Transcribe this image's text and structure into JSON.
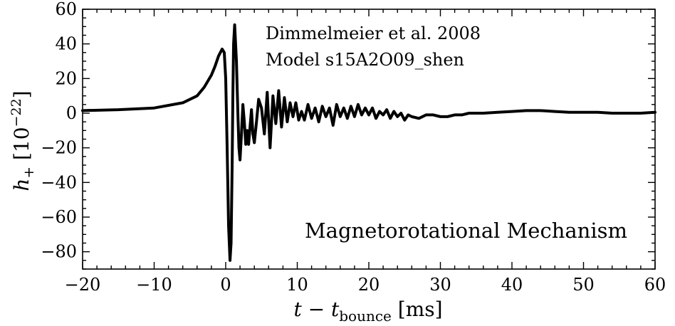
{
  "chart_data": {
    "type": "line",
    "xlabel": {
      "main": "t − t",
      "sub": "bounce",
      "unit": " [ms]"
    },
    "ylabel": {
      "main": "h",
      "sub": "+",
      "unit": " [10",
      "exp": "−22",
      "close": "]"
    },
    "xlim": [
      -20,
      60
    ],
    "ylim": [
      -90,
      60
    ],
    "xticks": [
      -20,
      -10,
      0,
      10,
      20,
      30,
      40,
      50,
      60
    ],
    "xtick_labels": [
      "−20",
      "−10",
      "0",
      "10",
      "20",
      "30",
      "40",
      "50",
      "60"
    ],
    "yticks": [
      -80,
      -60,
      -40,
      -20,
      0,
      20,
      40,
      60
    ],
    "ytick_labels": [
      "−80",
      "−60",
      "−40",
      "−20",
      "0",
      "20",
      "40",
      "60"
    ],
    "annotations": {
      "reference_line1": "Dimmelmeier et al. 2008",
      "reference_line2": "Model s15A2O09_shen",
      "mechanism": "Magnetorotational Mechanism"
    },
    "grid": false,
    "line_color": "#000000",
    "series": [
      {
        "x": [
          -20,
          -15,
          -10,
          -6,
          -4,
          -3,
          -2,
          -1.5,
          -1.0,
          -0.5,
          -0.2,
          0.0,
          0.2,
          0.4,
          0.6,
          0.75,
          0.9,
          1.0,
          1.1,
          1.25,
          1.5,
          1.7,
          1.85,
          2.0,
          2.2,
          2.4,
          2.6,
          2.8,
          3.0,
          3.2,
          3.4,
          3.6,
          3.8,
          4.0,
          4.3,
          4.6,
          5.0,
          5.4,
          5.8,
          6.2,
          6.6,
          7.0,
          7.4,
          7.8,
          8.2,
          8.6,
          9.0,
          9.4,
          9.8,
          10.2,
          10.6,
          11.0,
          11.5,
          12.0,
          12.5,
          13.0,
          13.5,
          14.0,
          14.5,
          15.0,
          15.5,
          16.0,
          16.5,
          17.0,
          17.5,
          18.0,
          18.5,
          19.0,
          19.5,
          20.0,
          20.5,
          21.0,
          21.5,
          22.0,
          22.5,
          23.0,
          23.5,
          24.0,
          24.5,
          25.0,
          25.5,
          26.0,
          27.0,
          28.0,
          29.0,
          30.0,
          31.0,
          32.0,
          33.0,
          34.0,
          36.0,
          38.0,
          40.0,
          42.0,
          44.0,
          46.0,
          48.0,
          50.0,
          52.0,
          54.0,
          56.0,
          58.0,
          60.0
        ],
        "y": [
          1.5,
          2,
          3,
          6,
          10,
          15,
          22,
          27,
          33,
          37,
          35,
          20,
          -20,
          -65,
          -85,
          -75,
          -30,
          10,
          40,
          51,
          30,
          0,
          -20,
          -27,
          -12,
          5,
          -5,
          -18,
          -10,
          -18,
          -8,
          2,
          -12,
          -17,
          -5,
          8,
          3,
          -12,
          12,
          -20,
          10,
          -6,
          13,
          -8,
          9,
          -5,
          6,
          -2,
          6,
          -4,
          1,
          -4,
          5,
          -3,
          3,
          -5,
          4,
          -2,
          3,
          -7,
          5,
          -2,
          3,
          -3,
          4,
          -2,
          5,
          -1,
          3,
          -1,
          3,
          -3,
          1,
          -1,
          2,
          -3,
          1,
          -2,
          0,
          -4,
          -1,
          -2,
          -3,
          -1,
          -1,
          -2,
          -2,
          -1,
          -1,
          0,
          0,
          0.5,
          1,
          1.5,
          1.5,
          1,
          0.5,
          0.5,
          0.5,
          0,
          0,
          0,
          0.5
        ]
      }
    ]
  }
}
